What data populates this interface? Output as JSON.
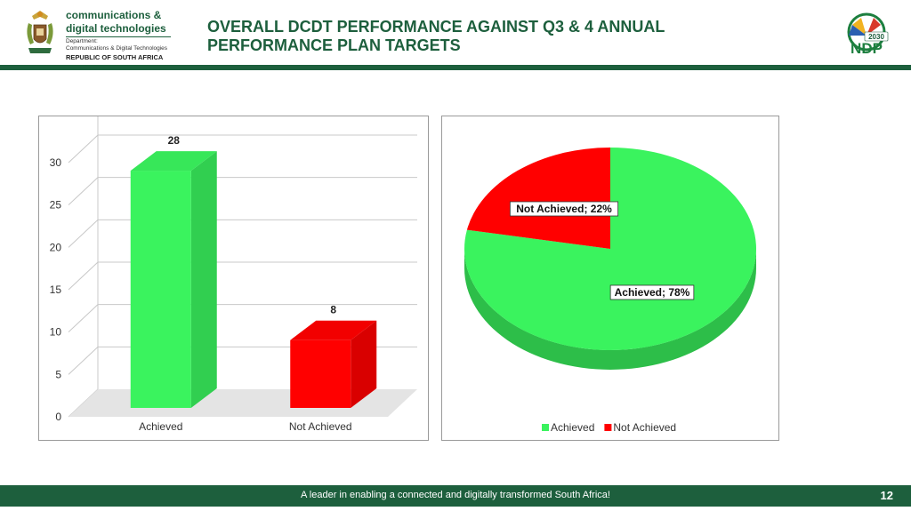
{
  "header": {
    "dept_line1": "communications &",
    "dept_line2": "digital technologies",
    "dept_sub1": "Department:",
    "dept_sub2": "Communications & Digital Technologies",
    "dept_country": "REPUBLIC OF SOUTH AFRICA",
    "title": "OVERALL DCDT PERFORMANCE AGAINST Q3 & 4 ANNUAL PERFORMANCE PLAN TARGETS",
    "ndp_year": "2030",
    "ndp_label": "NDP"
  },
  "chart_data": [
    {
      "type": "bar",
      "categories": [
        "Achieved",
        "Not Achieved"
      ],
      "values": [
        28,
        8
      ],
      "ylim": [
        0,
        30
      ],
      "yticks": [
        0,
        5,
        10,
        15,
        20,
        25,
        30
      ],
      "colors": [
        "#3af35e",
        "#ff0000"
      ],
      "grid": true,
      "legend": "none"
    },
    {
      "type": "pie",
      "labels": [
        "Achieved",
        "Not Achieved"
      ],
      "values": [
        78,
        22
      ],
      "data_labels": [
        "Achieved; 78%",
        "Not Achieved; 22%"
      ],
      "colors": [
        "#3af35e",
        "#ff0000"
      ],
      "legend": "bottom"
    }
  ],
  "footer": {
    "tagline": "A leader in enabling a connected and digitally transformed South Africa!",
    "page_number": "12"
  }
}
